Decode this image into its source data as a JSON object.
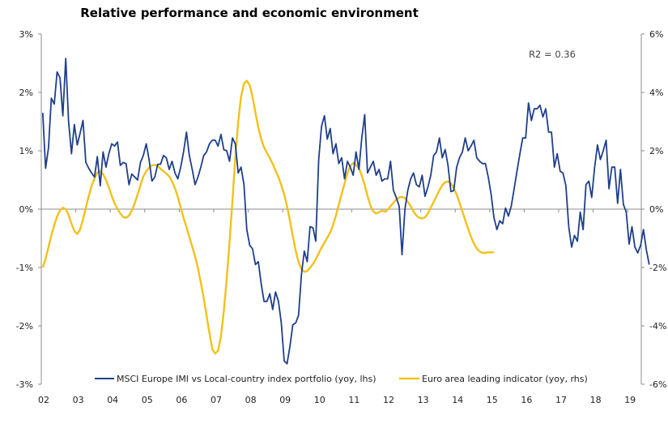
{
  "chart_data": {
    "type": "line",
    "title": "Relative performance and economic environment",
    "annotation": "R2 = 0.36",
    "xlabel": "",
    "ylabel_left": "",
    "ylabel_right": "",
    "x_start": 2002.0,
    "x_step_months": 1,
    "x_tick_labels": [
      "02",
      "03",
      "04",
      "05",
      "06",
      "07",
      "08",
      "09",
      "10",
      "11",
      "12",
      "13",
      "14",
      "15",
      "16",
      "17",
      "18",
      "19"
    ],
    "y_left": {
      "min": -3,
      "max": 3,
      "ticks": [
        3,
        2,
        1,
        0,
        -1,
        -2,
        -3
      ],
      "tick_labels": [
        "3%",
        "2%",
        "1%",
        "0%",
        "-1%",
        "-2%",
        "-3%"
      ]
    },
    "y_right": {
      "min": -6,
      "max": 6,
      "ticks": [
        6,
        4,
        2,
        0,
        -2,
        -4,
        -6
      ],
      "tick_labels": [
        "6%",
        "4%",
        "2%",
        "0%",
        "-2%",
        "-4%",
        "-6%"
      ]
    },
    "grid": false,
    "legend_position": "bottom-inside",
    "series": [
      {
        "name": "MSCI Europe IMI vs Local-country index portfolio (yoy, lhs)",
        "axis": "left",
        "color": "#1f3f8a",
        "values": [
          1.65,
          0.7,
          1.05,
          1.9,
          1.8,
          2.35,
          2.25,
          1.6,
          2.58,
          1.5,
          0.95,
          1.45,
          1.1,
          1.3,
          1.52,
          0.8,
          0.7,
          0.62,
          0.55,
          0.9,
          0.4,
          0.98,
          0.72,
          0.95,
          1.12,
          1.08,
          1.15,
          0.75,
          0.8,
          0.78,
          0.42,
          0.6,
          0.55,
          0.5,
          0.8,
          0.92,
          1.12,
          0.85,
          0.48,
          0.55,
          0.77,
          0.77,
          0.92,
          0.88,
          0.68,
          0.82,
          0.62,
          0.52,
          0.72,
          0.98,
          1.32,
          0.92,
          0.68,
          0.42,
          0.55,
          0.72,
          0.92,
          0.98,
          1.12,
          1.18,
          1.18,
          1.08,
          1.28,
          1.02,
          1.0,
          0.82,
          1.22,
          1.12,
          0.62,
          0.72,
          0.42,
          -0.35,
          -0.62,
          -0.68,
          -0.95,
          -0.9,
          -1.28,
          -1.58,
          -1.58,
          -1.45,
          -1.72,
          -1.42,
          -1.58,
          -1.95,
          -2.6,
          -2.65,
          -2.35,
          -1.98,
          -1.95,
          -1.82,
          -1.12,
          -0.72,
          -0.9,
          -0.3,
          -0.32,
          -0.55,
          0.85,
          1.42,
          1.6,
          1.2,
          1.38,
          0.95,
          1.12,
          0.78,
          0.88,
          0.52,
          0.82,
          0.72,
          0.58,
          0.98,
          0.68,
          1.22,
          1.62,
          0.62,
          0.72,
          0.82,
          0.58,
          0.68,
          0.48,
          0.52,
          0.52,
          0.82,
          0.32,
          0.2,
          0.05,
          -0.78,
          0.0,
          0.32,
          0.52,
          0.62,
          0.42,
          0.38,
          0.58,
          0.22,
          0.38,
          0.58,
          0.92,
          0.98,
          1.22,
          0.88,
          1.02,
          0.75,
          0.3,
          0.32,
          0.72,
          0.88,
          0.98,
          1.22,
          1.0,
          1.08,
          1.18,
          0.88,
          0.82,
          0.78,
          0.78,
          0.55,
          0.25,
          -0.15,
          -0.35,
          -0.2,
          -0.25,
          0.02,
          -0.12,
          0.05,
          0.35,
          0.65,
          0.95,
          1.22,
          1.22,
          1.82,
          1.52,
          1.72,
          1.72,
          1.78,
          1.58,
          1.72,
          1.32,
          1.32,
          0.72,
          0.95,
          0.65,
          0.62,
          0.4,
          -0.3,
          -0.65,
          -0.45,
          -0.55,
          -0.05,
          -0.35,
          0.42,
          0.48,
          0.2,
          0.72,
          1.1,
          0.85,
          1.0,
          1.18,
          0.35,
          0.72,
          0.72,
          0.1,
          0.68,
          0.08,
          -0.05,
          -0.6,
          -0.3,
          -0.65,
          -0.75,
          -0.62,
          -0.35,
          -0.7,
          -0.95
        ]
      },
      {
        "name": "Euro area leading indicator (yoy, rhs)",
        "axis": "right",
        "color": "#f2c11a",
        "values": [
          -2.0,
          -1.7,
          -1.3,
          -0.9,
          -0.55,
          -0.25,
          -0.05,
          0.05,
          0.0,
          -0.2,
          -0.5,
          -0.75,
          -0.85,
          -0.7,
          -0.35,
          0.05,
          0.45,
          0.8,
          1.05,
          1.25,
          1.3,
          1.2,
          1.0,
          0.75,
          0.45,
          0.2,
          0.0,
          -0.15,
          -0.27,
          -0.3,
          -0.22,
          -0.05,
          0.2,
          0.5,
          0.82,
          1.12,
          1.3,
          1.42,
          1.5,
          1.52,
          1.48,
          1.38,
          1.3,
          1.22,
          1.12,
          0.95,
          0.72,
          0.42,
          0.05,
          -0.3,
          -0.62,
          -0.95,
          -1.28,
          -1.62,
          -2.02,
          -2.52,
          -3.05,
          -3.65,
          -4.25,
          -4.8,
          -4.95,
          -4.85,
          -4.35,
          -3.5,
          -2.4,
          -1.12,
          0.3,
          1.75,
          3.0,
          3.85,
          4.3,
          4.4,
          4.25,
          3.85,
          3.3,
          2.8,
          2.4,
          2.12,
          1.92,
          1.75,
          1.55,
          1.32,
          1.1,
          0.82,
          0.5,
          0.1,
          -0.4,
          -0.92,
          -1.42,
          -1.82,
          -2.05,
          -2.15,
          -2.12,
          -2.02,
          -1.88,
          -1.72,
          -1.52,
          -1.32,
          -1.15,
          -0.98,
          -0.8,
          -0.55,
          -0.22,
          0.15,
          0.52,
          0.88,
          1.22,
          1.48,
          1.58,
          1.52,
          1.4,
          1.15,
          0.82,
          0.45,
          0.12,
          -0.08,
          -0.15,
          -0.1,
          -0.05,
          -0.08,
          -0.02,
          0.1,
          0.22,
          0.32,
          0.4,
          0.42,
          0.38,
          0.25,
          0.1,
          -0.08,
          -0.22,
          -0.3,
          -0.32,
          -0.28,
          -0.15,
          0.05,
          0.25,
          0.45,
          0.65,
          0.82,
          0.92,
          0.95,
          0.88,
          0.72,
          0.5,
          0.22,
          -0.08,
          -0.38,
          -0.68,
          -0.95,
          -1.18,
          -1.35,
          -1.45,
          -1.5,
          -1.5,
          -1.48,
          -1.48,
          -1.48
        ]
      }
    ]
  }
}
